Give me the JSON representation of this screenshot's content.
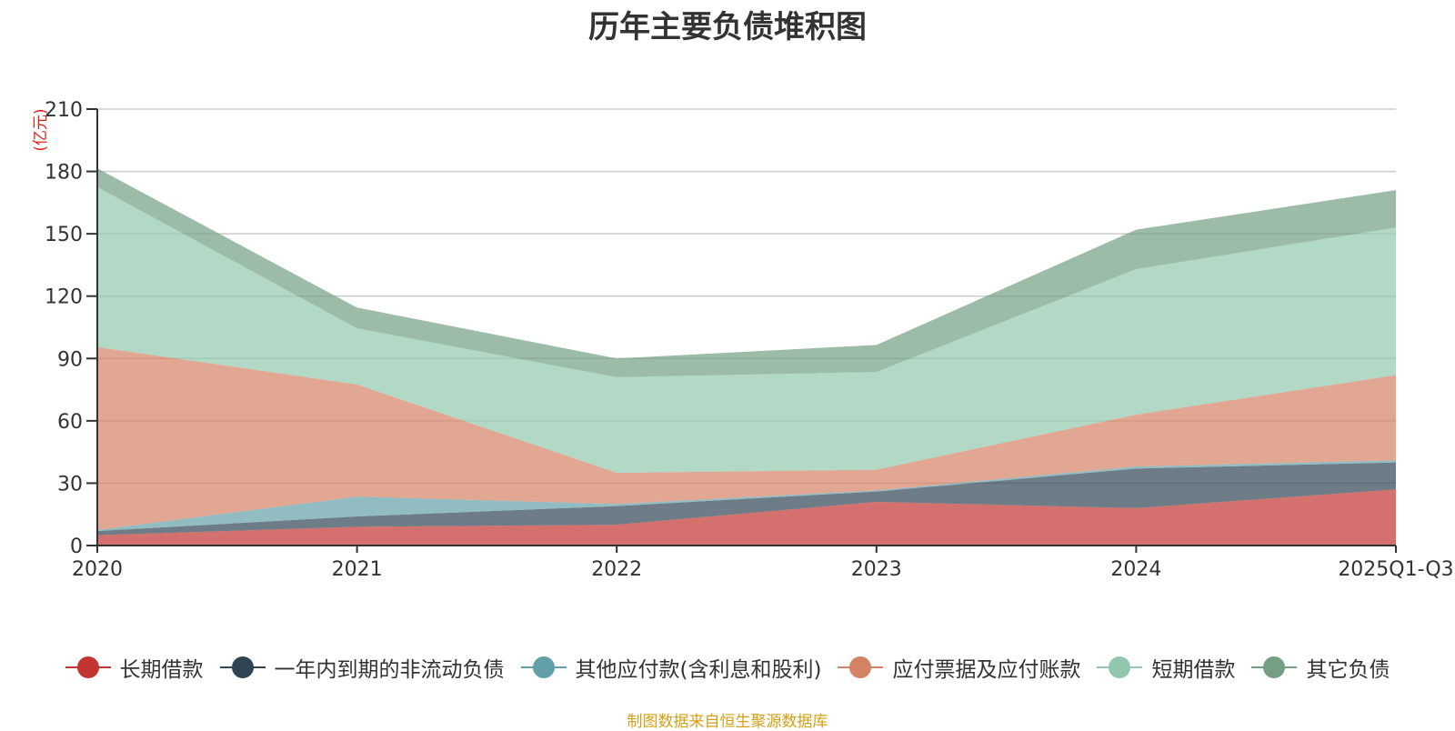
{
  "chart_data": {
    "type": "area",
    "stacked": true,
    "title": "历年主要负债堆积图",
    "ylabel": "(亿元)",
    "xlabel": "",
    "categories": [
      "2020",
      "2021",
      "2022",
      "2023",
      "2024",
      "2025Q1-Q3"
    ],
    "ylim": [
      0,
      210
    ],
    "yticks": [
      0,
      30,
      60,
      90,
      120,
      150,
      180,
      210
    ],
    "grid": true,
    "legend_position": "bottom",
    "series": [
      {
        "name": "长期借款",
        "color": "#c23531",
        "values": [
          5,
          9,
          10,
          21,
          18,
          27
        ]
      },
      {
        "name": "一年内到期的非流动负债",
        "color": "#2f4554",
        "values": [
          2,
          5,
          9,
          5,
          19,
          13
        ]
      },
      {
        "name": "其他应付款(含利息和股利)",
        "color": "#61a0a8",
        "values": [
          0.5,
          9.5,
          1,
          0.5,
          1,
          1
        ]
      },
      {
        "name": "应付票据及应付账款",
        "color": "#d48265",
        "values": [
          88,
          54,
          15,
          10,
          25,
          41
        ]
      },
      {
        "name": "短期借款",
        "color": "#91c7ae",
        "values": [
          77,
          27,
          46,
          47,
          70,
          71
        ]
      },
      {
        "name": "其它负债",
        "color": "#749f83",
        "values": [
          9,
          10,
          9,
          13,
          19,
          18
        ]
      }
    ],
    "source_note": "制图数据来自恒生聚源数据库"
  }
}
